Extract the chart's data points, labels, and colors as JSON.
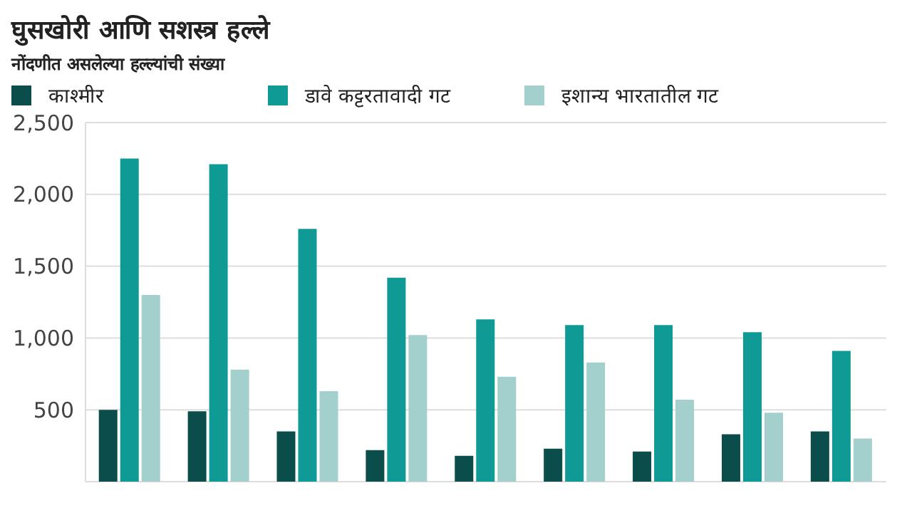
{
  "chart_data": {
    "type": "bar",
    "title": "घुसखोरी आणि सशस्त्र हल्ले",
    "subtitle": "नोंदणीत असलेल्या हल्ल्यांची संख्या",
    "categories": [
      null,
      null,
      null,
      null,
      null,
      null,
      null,
      null,
      null
    ],
    "series": [
      {
        "name": "काश्मीर",
        "color": "#0a4d4a",
        "values": [
          500,
          490,
          350,
          220,
          180,
          230,
          210,
          330,
          350
        ]
      },
      {
        "name": "डावे कट्टरतावादी गट",
        "color": "#0f9a96",
        "values": [
          2250,
          2210,
          1760,
          1420,
          1130,
          1090,
          1090,
          1040,
          910
        ]
      },
      {
        "name": "इशान्य भारतातील गट",
        "color": "#a3cfcc",
        "values": [
          1300,
          780,
          630,
          1020,
          730,
          830,
          570,
          480,
          300
        ]
      }
    ],
    "ylim": [
      0,
      2500
    ],
    "yticks": [
      500,
      {
        "value": 1000,
        "label": "1,000"
      },
      {
        "value": 1500,
        "label": "1,500"
      },
      {
        "value": 2000,
        "label": "2,000"
      },
      {
        "value": 2500,
        "label": "2,500"
      }
    ],
    "grid": "y",
    "legend": "top left",
    "tick_labels": "y"
  }
}
